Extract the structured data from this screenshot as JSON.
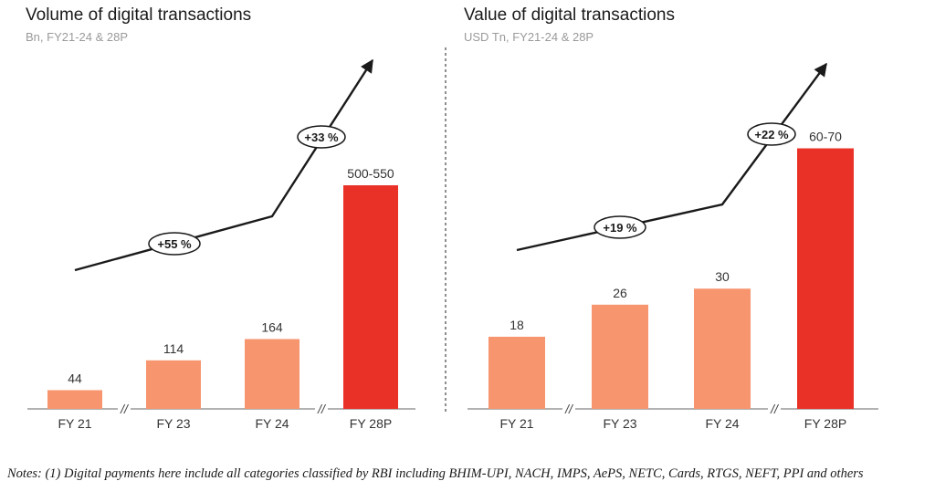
{
  "chart_data": [
    {
      "type": "bar",
      "title": "Volume of digital transactions",
      "subtitle": "Bn, FY21-24 & 28P",
      "categories": [
        "FY 21",
        "FY 23",
        "FY 24",
        "FY 28P"
      ],
      "values": [
        44,
        114,
        164,
        525
      ],
      "value_labels": [
        "44",
        "114",
        "164",
        "500-550"
      ],
      "highlight_index": 3,
      "growth_labels": [
        "+55 %",
        "+33 %"
      ],
      "ylim": [
        0,
        600
      ],
      "colors": {
        "base": "#F7956F",
        "highlight": "#EA3128"
      }
    },
    {
      "type": "bar",
      "title": "Value of digital transactions",
      "subtitle": "USD Tn, FY21-24 & 28P",
      "categories": [
        "FY 21",
        "FY 23",
        "FY 24",
        "FY 28P"
      ],
      "values": [
        18,
        26,
        30,
        65
      ],
      "value_labels": [
        "18",
        "26",
        "30",
        "60-70"
      ],
      "highlight_index": 3,
      "growth_labels": [
        "+19 %",
        "+22 %"
      ],
      "ylim": [
        0,
        74
      ],
      "colors": {
        "base": "#F7956F",
        "highlight": "#EA3128"
      }
    }
  ],
  "axis_break_symbol": "//",
  "notes": "Notes: (1) Digital payments here include all categories classified by RBI including BHIM-UPI, NACH, IMPS, AePS, NETC, Cards, RTGS, NEFT, PPI and others"
}
